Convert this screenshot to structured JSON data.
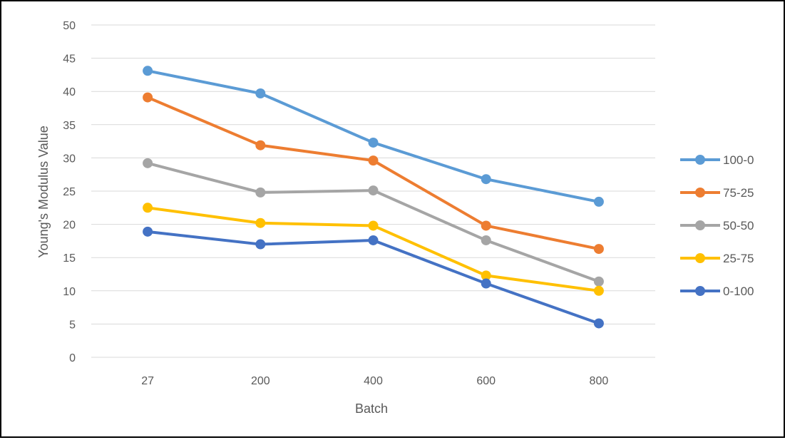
{
  "chart_data": {
    "type": "line",
    "title": "",
    "xlabel": "Batch",
    "ylabel": "Young's Modulus Value",
    "categories": [
      "27",
      "200",
      "400",
      "600",
      "800"
    ],
    "ylim": [
      0,
      50
    ],
    "yticks": [
      0,
      5,
      10,
      15,
      20,
      25,
      30,
      35,
      40,
      45,
      50
    ],
    "grid": true,
    "legend_position": "right",
    "series": [
      {
        "name": "100-0",
        "color": "#5B9BD5",
        "values": [
          43.1,
          39.7,
          32.3,
          26.8,
          23.4
        ]
      },
      {
        "name": "75-25",
        "color": "#ED7D31",
        "values": [
          39.1,
          31.9,
          29.6,
          19.8,
          16.3
        ]
      },
      {
        "name": "50-50",
        "color": "#A5A5A5",
        "values": [
          29.2,
          24.8,
          25.1,
          17.6,
          11.4
        ]
      },
      {
        "name": "25-75",
        "color": "#FFC000",
        "values": [
          22.5,
          20.2,
          19.8,
          12.3,
          10.0
        ]
      },
      {
        "name": "0-100",
        "color": "#4472C4",
        "values": [
          18.9,
          17.0,
          17.6,
          11.1,
          5.1
        ]
      }
    ]
  }
}
